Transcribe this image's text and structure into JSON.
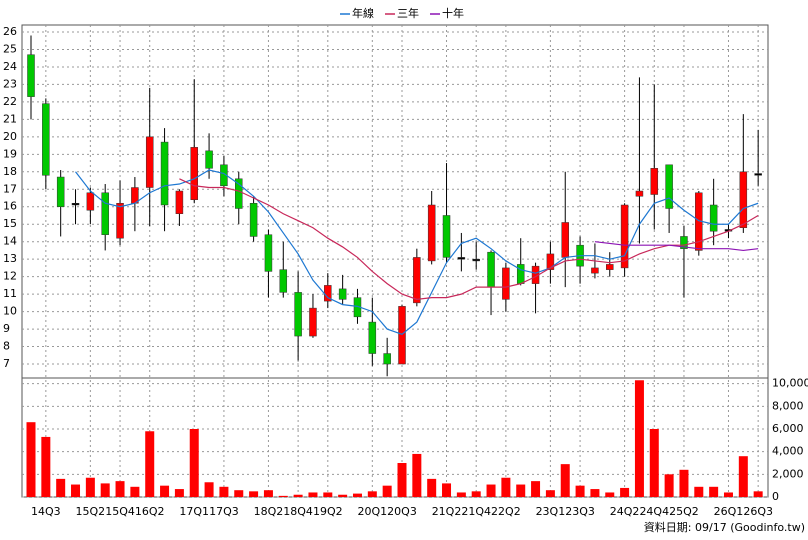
{
  "chart_data": {
    "type": "candlestick",
    "categories": [
      null,
      "14Q3",
      null,
      null,
      "15Q2",
      null,
      "15Q4",
      null,
      "16Q2",
      null,
      null,
      "17Q1",
      null,
      "17Q3",
      null,
      null,
      "18Q2",
      null,
      "18Q4",
      null,
      "19Q2",
      null,
      null,
      "20Q1",
      null,
      "20Q3",
      null,
      null,
      "21Q2",
      null,
      "21Q4",
      null,
      "22Q2",
      null,
      null,
      "23Q1",
      null,
      "23Q3",
      null,
      null,
      "24Q2",
      null,
      "24Q4",
      null,
      "25Q2",
      null,
      null,
      "26Q1",
      null,
      "26Q3"
    ],
    "open": [
      24.7,
      21.9,
      17.7,
      16.2,
      15.8,
      16.8,
      14.2,
      16.2,
      17.1,
      19.7,
      15.6,
      16.4,
      19.2,
      18.4,
      17.6,
      16.2,
      14.4,
      12.4,
      11.1,
      8.6,
      10.6,
      11.3,
      10.8,
      9.4,
      7.6,
      7.0,
      10.5,
      12.9,
      15.5,
      13.1,
      13.0,
      13.4,
      10.7,
      12.7,
      11.6,
      12.4,
      13.1,
      13.8,
      12.2,
      12.4,
      12.5,
      16.6,
      16.7,
      18.4,
      14.3,
      13.5,
      16.1,
      14.6,
      14.8,
      17.9
    ],
    "high": [
      25.8,
      22.2,
      18.1,
      17.0,
      17.1,
      17.3,
      17.5,
      17.7,
      22.8,
      20.5,
      17.0,
      23.3,
      20.2,
      18.9,
      18.0,
      16.6,
      14.7,
      14.0,
      12.3,
      11.0,
      12.2,
      12.1,
      11.3,
      10.8,
      8.5,
      10.4,
      13.6,
      16.9,
      18.5,
      14.5,
      14.0,
      13.5,
      12.8,
      14.2,
      12.8,
      14.0,
      18.0,
      14.3,
      13.9,
      13.4,
      16.2,
      23.4,
      23.0,
      18.4,
      14.9,
      16.9,
      17.6,
      15.0,
      21.3,
      20.4
    ],
    "low": [
      21.0,
      17.0,
      14.3,
      15.0,
      15.0,
      13.5,
      13.8,
      14.6,
      14.9,
      14.6,
      14.9,
      16.2,
      17.6,
      16.6,
      15.0,
      14.0,
      10.8,
      10.8,
      7.2,
      8.5,
      10.2,
      10.4,
      9.3,
      6.9,
      6.3,
      7.0,
      10.3,
      12.7,
      12.8,
      12.3,
      12.4,
      9.8,
      10.0,
      11.5,
      9.9,
      11.6,
      11.4,
      11.6,
      11.9,
      12.0,
      12.0,
      13.9,
      14.7,
      14.5,
      10.8,
      13.2,
      13.8,
      14.2,
      14.5,
      17.2
    ],
    "close": [
      22.3,
      17.8,
      16.0,
      16.1,
      16.8,
      14.4,
      16.2,
      17.1,
      20.0,
      16.1,
      16.9,
      19.4,
      18.2,
      17.2,
      15.9,
      14.3,
      12.3,
      11.1,
      8.6,
      10.2,
      11.5,
      10.7,
      9.7,
      7.6,
      7.0,
      10.3,
      13.1,
      16.1,
      13.1,
      13.0,
      12.9,
      11.4,
      12.5,
      11.6,
      12.6,
      13.3,
      15.1,
      12.6,
      12.5,
      12.7,
      16.1,
      16.9,
      18.2,
      15.9,
      13.6,
      16.8,
      14.6,
      14.7,
      18.0,
      17.8
    ],
    "up_color": "#ff0000",
    "down_color": "#00c800",
    "flat_color": "#000000",
    "series": [
      {
        "name": "年線",
        "color": "#1e78d2",
        "values": [
          null,
          null,
          null,
          18.0,
          16.9,
          16.2,
          16.0,
          16.2,
          16.8,
          17.2,
          17.3,
          17.6,
          18.1,
          17.9,
          17.3,
          16.6,
          15.7,
          14.5,
          13.3,
          11.8,
          10.8,
          10.4,
          10.3,
          10.0,
          9.0,
          8.7,
          9.4,
          11.1,
          12.8,
          13.9,
          14.2,
          13.6,
          12.9,
          12.4,
          12.2,
          12.5,
          13.1,
          13.2,
          13.2,
          13.0,
          13.2,
          15.0,
          16.2,
          16.5,
          15.8,
          15.2,
          15.0,
          15.0,
          15.9,
          16.2
        ]
      },
      {
        "name": "三年",
        "color": "#c8285a",
        "values": [
          null,
          null,
          null,
          null,
          null,
          null,
          null,
          null,
          null,
          null,
          17.6,
          17.2,
          17.1,
          17.1,
          16.9,
          16.5,
          16.1,
          15.6,
          15.2,
          14.8,
          14.2,
          13.7,
          13.1,
          12.3,
          11.6,
          11.0,
          10.7,
          10.8,
          10.8,
          11.0,
          11.4,
          11.4,
          11.4,
          11.6,
          12.0,
          12.5,
          12.9,
          13.0,
          12.9,
          12.8,
          12.9,
          13.3,
          13.6,
          13.8,
          13.8,
          14.0,
          14.3,
          14.6,
          15.0,
          15.5
        ]
      },
      {
        "name": "十年",
        "color": "#8c14b4",
        "values": [
          null,
          null,
          null,
          null,
          null,
          null,
          null,
          null,
          null,
          null,
          null,
          null,
          null,
          null,
          null,
          null,
          null,
          null,
          null,
          null,
          null,
          null,
          null,
          null,
          null,
          null,
          null,
          null,
          null,
          null,
          null,
          null,
          null,
          null,
          null,
          null,
          null,
          null,
          14.0,
          13.9,
          13.8,
          13.8,
          13.8,
          13.8,
          13.7,
          13.6,
          13.6,
          13.6,
          13.5,
          13.6
        ]
      }
    ],
    "ylim": [
      6.2,
      26.4
    ],
    "yticks": [
      7,
      8,
      9,
      10,
      11,
      12,
      13,
      14,
      15,
      16,
      17,
      18,
      19,
      20,
      21,
      22,
      23,
      24,
      25,
      26
    ],
    "grid": true,
    "volume": {
      "color": "#ff0000",
      "values": [
        6600,
        5300,
        1600,
        1100,
        1700,
        1200,
        1400,
        900,
        5800,
        1000,
        700,
        6000,
        1300,
        900,
        600,
        500,
        600,
        100,
        200,
        400,
        400,
        200,
        300,
        500,
        1000,
        3000,
        3800,
        1600,
        1200,
        400,
        500,
        1100,
        1700,
        1100,
        1400,
        600,
        2900,
        1000,
        700,
        400,
        800,
        10300,
        6000,
        2000,
        2400,
        900,
        900,
        400,
        3600,
        500
      ],
      "ylim": [
        0,
        10500
      ],
      "yticks": [
        0,
        {
          "value": 2000,
          "label": "2,000"
        },
        {
          "value": 4000,
          "label": "4,000"
        },
        {
          "value": 6000,
          "label": "6,000"
        },
        {
          "value": 8000,
          "label": "8,000"
        },
        {
          "value": 10000,
          "label": "10,000"
        }
      ]
    },
    "source": "資料日期: 09/17 (Goodinfo.tw)"
  }
}
